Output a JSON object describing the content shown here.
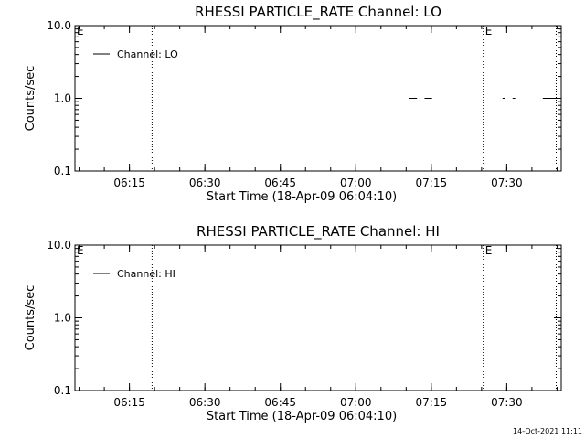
{
  "chart_data": [
    {
      "type": "line",
      "title": "RHESSI PARTICLE_RATE Channel: LO",
      "xlabel": "Start Time (18-Apr-09 06:04:10)",
      "ylabel": "Counts/sec",
      "yscale": "log",
      "ylim": [
        0.1,
        10.0
      ],
      "xlim": [
        "06:04:10",
        "07:40:50"
      ],
      "x_ticks": [
        "06:15",
        "06:30",
        "06:45",
        "07:00",
        "07:15",
        "07:30"
      ],
      "y_ticks": [
        "0.1",
        "1.0",
        "10.0"
      ],
      "legend": "Channel: LO",
      "legend_position": "top-left",
      "vlines": [
        "06:19:30",
        "07:25:20",
        "07:39:50"
      ],
      "markers": [
        {
          "label": "E",
          "x": "06:04:10"
        },
        {
          "label": "E",
          "x": "07:25:20"
        }
      ],
      "series": [
        {
          "name": "Channel: LO",
          "segments": [
            [
              [
                "07:10:40",
                1.0
              ],
              [
                "07:12:10",
                1.0
              ]
            ],
            [
              [
                "07:13:40",
                1.0
              ],
              [
                "07:15:10",
                1.0
              ]
            ],
            [
              [
                "07:29:10",
                1.0
              ],
              [
                "07:29:40",
                1.0
              ]
            ],
            [
              [
                "07:31:10",
                1.0
              ],
              [
                "07:31:40",
                1.0
              ]
            ],
            [
              [
                "07:37:10",
                1.0
              ],
              [
                "07:39:40",
                1.0
              ]
            ]
          ]
        }
      ]
    },
    {
      "type": "line",
      "title": "RHESSI PARTICLE_RATE Channel: HI",
      "xlabel": "Start Time (18-Apr-09 06:04:10)",
      "ylabel": "Counts/sec",
      "yscale": "log",
      "ylim": [
        0.1,
        10.0
      ],
      "xlim": [
        "06:04:10",
        "07:40:50"
      ],
      "x_ticks": [
        "06:15",
        "06:30",
        "06:45",
        "07:00",
        "07:15",
        "07:30"
      ],
      "y_ticks": [
        "0.1",
        "1.0",
        "10.0"
      ],
      "legend": "Channel: HI",
      "legend_position": "top-left",
      "vlines": [
        "06:19:30",
        "07:25:20",
        "07:39:50"
      ],
      "markers": [
        {
          "label": "E",
          "x": "06:04:10"
        },
        {
          "label": "E",
          "x": "07:25:20"
        }
      ],
      "series": [
        {
          "name": "Channel: HI",
          "segments": []
        }
      ]
    }
  ],
  "footer": "14-Oct-2021 11:11"
}
